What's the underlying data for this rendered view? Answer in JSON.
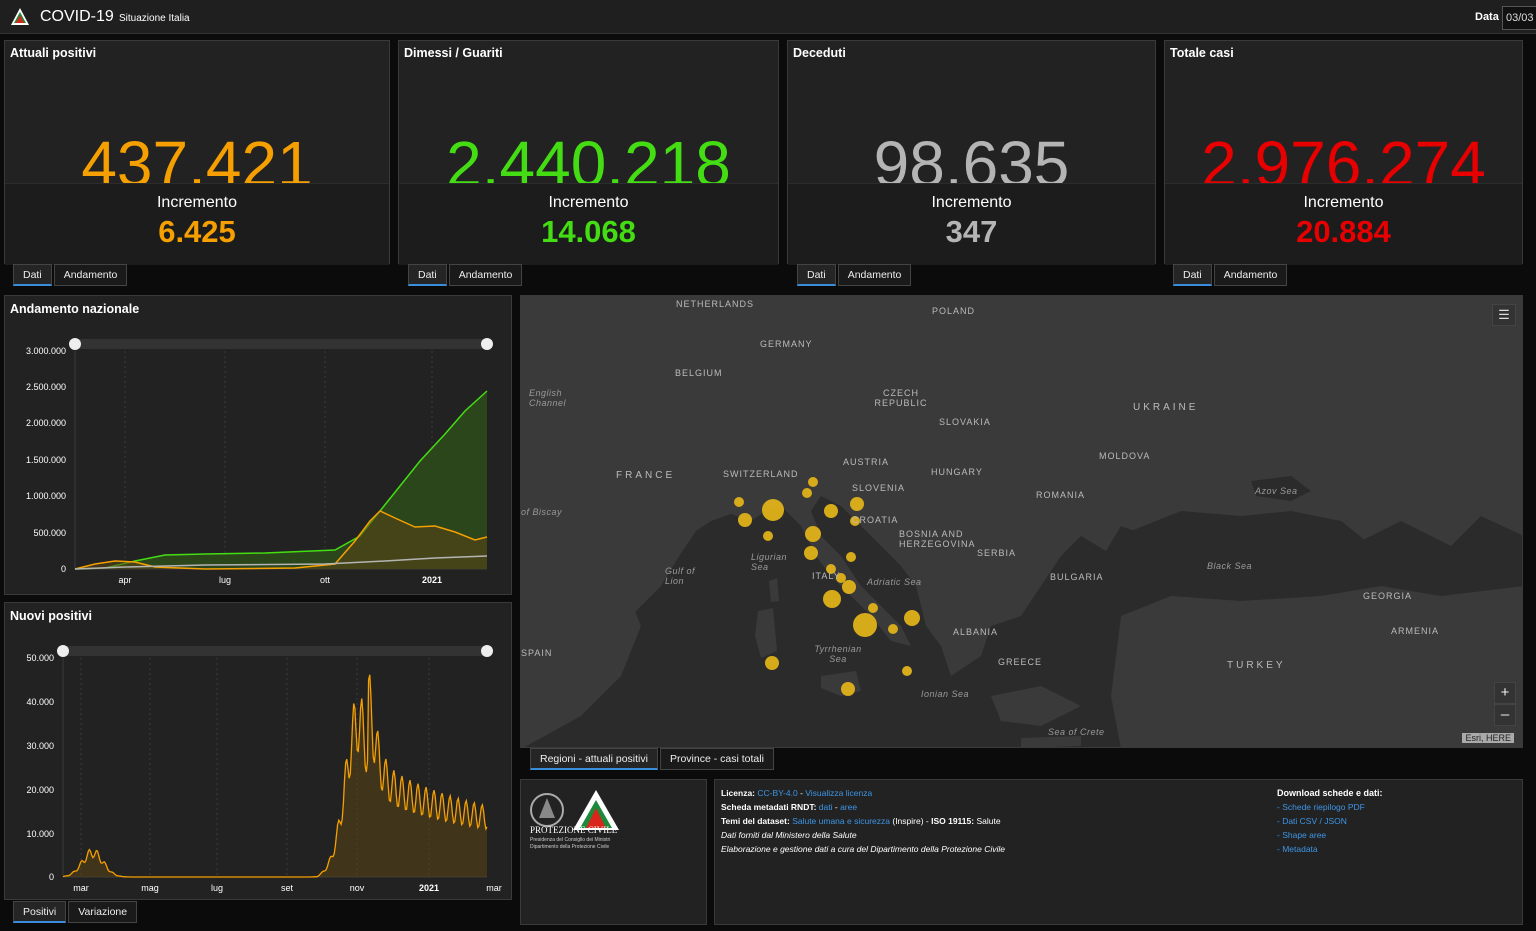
{
  "header": {
    "title": "COVID-19",
    "subtitle": "Situazione Italia",
    "date_label": "Data",
    "date_value": "03/03"
  },
  "cards": [
    {
      "title": "Attuali positivi",
      "value": "437.421",
      "increment_label": "Incremento",
      "increment": "6.425",
      "color": "#f5a000"
    },
    {
      "title": "Dimessi / Guariti",
      "value": "2.440.218",
      "increment_label": "Incremento",
      "increment": "14.068",
      "color": "#44dd14"
    },
    {
      "title": "Deceduti",
      "value": "98.635",
      "increment_label": "Incremento",
      "increment": "347",
      "color": "#b4b4b4"
    },
    {
      "title": "Totale casi",
      "value": "2.976.274",
      "increment_label": "Incremento",
      "increment": "20.884",
      "color": "#e80000"
    }
  ],
  "card_tabs": {
    "dati": "Dati",
    "andamento": "Andamento"
  },
  "national_chart": {
    "title": "Andamento nazionale",
    "y_ticks": [
      "3.000.000",
      "2.500.000",
      "2.000.000",
      "1.500.000",
      "1.000.000",
      "500.000",
      "0"
    ],
    "x_ticks": [
      "apr",
      "lug",
      "ott",
      "2021"
    ]
  },
  "new_positives_chart": {
    "title": "Nuovi positivi",
    "y_ticks": [
      "50.000",
      "40.000",
      "30.000",
      "20.000",
      "10.000",
      "0"
    ],
    "x_ticks": [
      "mar",
      "mag",
      "lug",
      "set",
      "nov",
      "2021",
      "mar"
    ]
  },
  "bottom_tabs": {
    "positivi": "Positivi",
    "variazione": "Variazione"
  },
  "map_tabs": {
    "regioni": "Regioni - attuali positivi",
    "province": "Province - casi totali"
  },
  "map": {
    "attribution": "Esri, HERE",
    "zoom_in": "+",
    "zoom_out": "–",
    "labels": {
      "netherlands": "NETHERLANDS",
      "poland": "POLAND",
      "germany": "GERMANY",
      "belgium": "BELGIUM",
      "english_channel": "English Channel",
      "czech": "CZECH REPUBLIC",
      "ukraine": "UKRAINE",
      "slovakia": "SLOVAKIA",
      "france": "FRANCE",
      "switzerland": "SWITZERLAND",
      "austria": "AUSTRIA",
      "hungary": "HUNGARY",
      "moldova": "MOLDOVA",
      "slovenia": "SLOVENIA",
      "croatia": "CROATIA",
      "romania": "ROMANIA",
      "azov": "Azov Sea",
      "biscay": "of Biscay",
      "bosnia": "BOSNIA AND HERZEGOVINA",
      "serbia": "SERBIA",
      "ligurian": "Ligurian Sea",
      "gulf_lion": "Gulf of Lion",
      "italy": "ITALY",
      "adriatic": "Adriatic Sea",
      "bulgaria": "BULGARIA",
      "black_sea": "Black Sea",
      "georgia": "GEORGIA",
      "spain": "SPAIN",
      "albania": "ALBANIA",
      "armenia": "ARMENIA",
      "tyrrhenian": "Tyrrhenian Sea",
      "greece": "GREECE",
      "turkey": "TURKEY",
      "ionian": "Ionian Sea",
      "crete": "Sea of Crete"
    }
  },
  "footer": {
    "logo_text": "PROTEZIONE CIVILE",
    "logo_sub1": "Presidenza del Consiglio dei Ministri",
    "logo_sub2": "Dipartimento della Protezione Civile",
    "license_label": "Licenza:",
    "license_value": "CC-BY-4.0",
    "license_sep": " - ",
    "license_link": "Visualizza licenza",
    "meta_label": "Scheda metadati RNDT:",
    "meta_dati": "dati",
    "meta_sep": " - ",
    "meta_aree": "aree",
    "themes_label": "Temi del dataset:",
    "themes_value": "Salute umana e sicurezza",
    "themes_rest": " (Inspire) - ",
    "iso_label": "ISO 19115:",
    "iso_value": " Salute",
    "data_source": "Dati forniti dal Ministero della Salute",
    "processing": "Elaborazione e gestione dati a cura del Dipartimento della Protezione Civile",
    "download_title": "Download schede e dati:",
    "downloads": [
      "- Schede riepilogo PDF",
      "- Dati CSV / JSON",
      "- Shape aree",
      "- Metadata"
    ]
  }
}
